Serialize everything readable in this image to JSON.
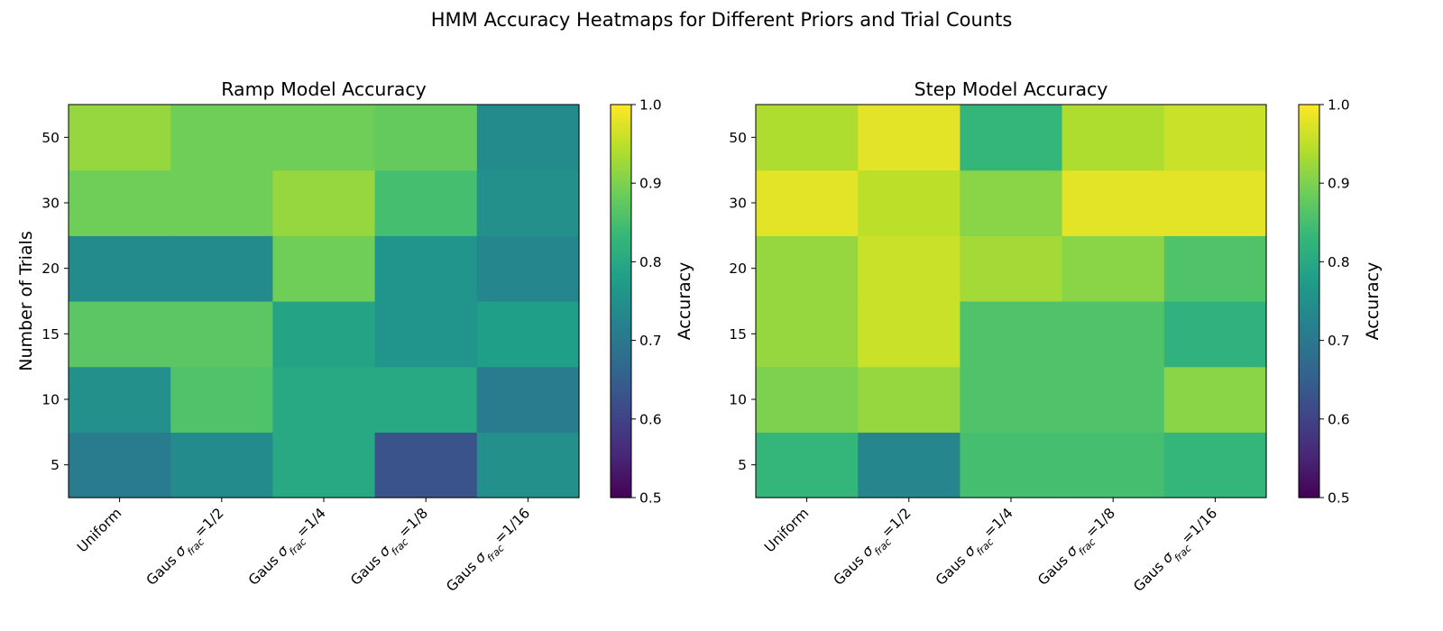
{
  "figure": {
    "suptitle": "HMM Accuracy Heatmaps for Different Priors and Trial Counts"
  },
  "colormap": {
    "name": "viridis",
    "stops": [
      "#440154",
      "#482878",
      "#3e4989",
      "#31688e",
      "#26828e",
      "#1f9e89",
      "#35b779",
      "#6ece58",
      "#b5de2b",
      "#fde725"
    ]
  },
  "chart_data": [
    {
      "type": "heatmap",
      "title": "Ramp Model Accuracy",
      "xlabel": "",
      "ylabel": "Number of Trials",
      "x_categories": [
        "Uniform",
        "Gaus σfrac=1/2",
        "Gaus σfrac=1/4",
        "Gaus σfrac=1/8",
        "Gaus σfrac=1/16"
      ],
      "y_categories": [
        5,
        10,
        15,
        20,
        30,
        50
      ],
      "values": [
        [
          0.71,
          0.74,
          0.8,
          0.63,
          0.75
        ],
        [
          0.75,
          0.86,
          0.8,
          0.8,
          0.71
        ],
        [
          0.87,
          0.87,
          0.79,
          0.76,
          0.78
        ],
        [
          0.74,
          0.74,
          0.89,
          0.76,
          0.73
        ],
        [
          0.89,
          0.89,
          0.92,
          0.85,
          0.75
        ],
        [
          0.92,
          0.89,
          0.89,
          0.88,
          0.74
        ]
      ],
      "colorbar": {
        "label": "Accuracy",
        "vmin": 0.5,
        "vmax": 1.0,
        "ticks": [
          "0.5",
          "0.6",
          "0.7",
          "0.8",
          "0.9",
          "1.0"
        ]
      }
    },
    {
      "type": "heatmap",
      "title": "Step Model Accuracy",
      "xlabel": "",
      "ylabel": "",
      "x_categories": [
        "Uniform",
        "Gaus σfrac=1/2",
        "Gaus σfrac=1/4",
        "Gaus σfrac=1/8",
        "Gaus σfrac=1/16"
      ],
      "y_categories": [
        5,
        10,
        15,
        20,
        30,
        50
      ],
      "values": [
        [
          0.83,
          0.73,
          0.85,
          0.85,
          0.83
        ],
        [
          0.9,
          0.92,
          0.86,
          0.86,
          0.91
        ],
        [
          0.92,
          0.96,
          0.86,
          0.86,
          0.82
        ],
        [
          0.92,
          0.96,
          0.93,
          0.91,
          0.86
        ],
        [
          0.98,
          0.95,
          0.91,
          0.98,
          0.98
        ],
        [
          0.94,
          0.98,
          0.83,
          0.94,
          0.96
        ]
      ],
      "colorbar": {
        "label": "Accuracy",
        "vmin": 0.5,
        "vmax": 1.0,
        "ticks": [
          "0.5",
          "0.6",
          "0.7",
          "0.8",
          "0.9",
          "1.0"
        ]
      }
    }
  ]
}
